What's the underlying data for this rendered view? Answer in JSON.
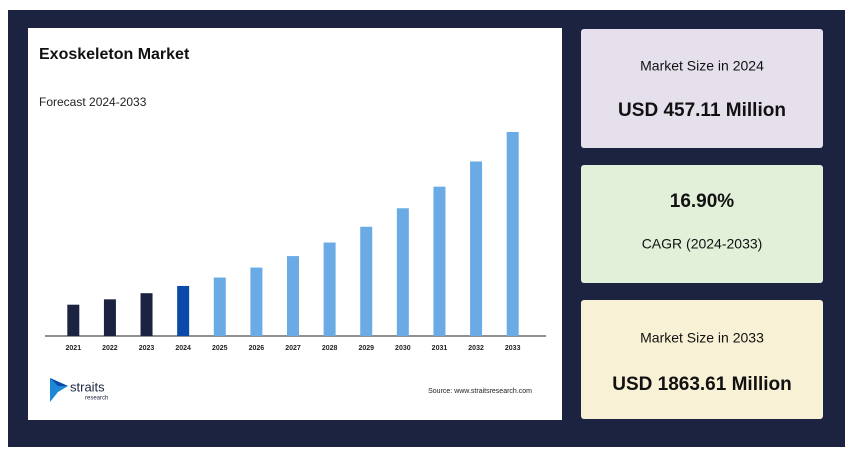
{
  "chart_data": {
    "type": "bar",
    "title": "Exoskeleton Market",
    "subtitle": "Forecast 2024-2033",
    "categories": [
      "2021",
      "2022",
      "2023",
      "2024",
      "2025",
      "2026",
      "2027",
      "2028",
      "2029",
      "2030",
      "2031",
      "2032",
      "2033"
    ],
    "values": [
      286,
      335,
      391,
      457.11,
      534,
      625,
      730,
      854,
      998,
      1167,
      1364,
      1594,
      1863.61
    ],
    "colors": [
      "#1b2340",
      "#1b2340",
      "#1b2340",
      "#0b4aa8",
      "#6aabe6",
      "#6aabe6",
      "#6aabe6",
      "#6aabe6",
      "#6aabe6",
      "#6aabe6",
      "#6aabe6",
      "#6aabe6",
      "#6aabe6"
    ],
    "ylim": [
      0,
      1900
    ],
    "grid": false,
    "source": "Source: www.straitsresearch.com"
  },
  "logo": {
    "name": "straits",
    "tagline": "research"
  },
  "cards": [
    {
      "label": "Market Size in 2024",
      "value": "USD 457.11 Million"
    },
    {
      "value": "16.90%",
      "label": "CAGR (2024-2033)"
    },
    {
      "label": "Market Size in 2033",
      "value": "USD 1863.61 Million"
    }
  ]
}
